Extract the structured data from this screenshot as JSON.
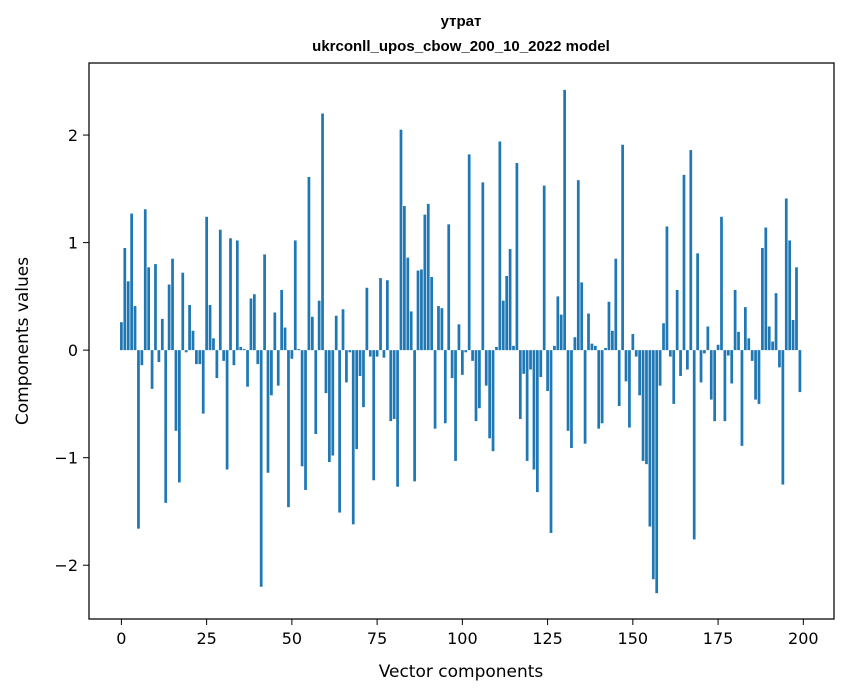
{
  "chart_data": {
    "type": "bar",
    "title": "утрат",
    "subtitle": "ukrconll_upos_cbow_200_10_2022 model",
    "xlabel": "Vector components",
    "ylabel": "Components values",
    "xlim": [
      -9.5,
      209
    ],
    "ylim": [
      -2.5,
      2.67
    ],
    "xticks": [
      0,
      25,
      50,
      75,
      100,
      125,
      150,
      175,
      200
    ],
    "yticks": [
      -2,
      -1,
      0,
      1,
      2
    ],
    "xtick_labels": [
      "0",
      "25",
      "50",
      "75",
      "100",
      "125",
      "150",
      "175",
      "200"
    ],
    "ytick_labels": [
      "−2",
      "−1",
      "0",
      "1",
      "2"
    ],
    "bar_color": "#1f77b4",
    "values": [
      0.26,
      0.95,
      0.64,
      1.27,
      0.41,
      -1.66,
      -0.14,
      1.31,
      0.77,
      -0.36,
      0.8,
      -0.11,
      0.29,
      -1.42,
      0.61,
      0.85,
      -0.75,
      -1.23,
      0.72,
      -0.02,
      0.42,
      0.18,
      -0.13,
      -0.13,
      -0.59,
      1.24,
      0.42,
      0.11,
      -0.26,
      1.12,
      -0.1,
      -1.11,
      1.04,
      -0.14,
      1.02,
      0.03,
      0.01,
      -0.34,
      0.48,
      0.52,
      -0.13,
      -2.2,
      0.89,
      -1.14,
      -0.42,
      0.35,
      -0.33,
      0.56,
      0.21,
      -1.46,
      -0.08,
      1.02,
      0.01,
      -1.08,
      -1.3,
      1.61,
      0.31,
      -0.78,
      0.46,
      2.2,
      -0.4,
      -1.04,
      -0.98,
      0.32,
      -1.51,
      0.38,
      -0.3,
      -0.02,
      -1.62,
      -0.92,
      -0.24,
      -0.53,
      0.58,
      -0.06,
      -1.21,
      -0.06,
      0.67,
      -0.07,
      0.65,
      -0.66,
      -0.64,
      -1.27,
      2.05,
      1.34,
      0.86,
      0.36,
      -1.22,
      0.74,
      0.75,
      1.26,
      1.36,
      0.68,
      -0.73,
      0.41,
      0.39,
      -0.68,
      1.17,
      -0.26,
      -1.03,
      0.24,
      -0.23,
      -0.02,
      1.82,
      -0.1,
      -0.66,
      -0.54,
      1.56,
      -0.33,
      -0.82,
      -0.94,
      0.03,
      1.94,
      0.46,
      0.69,
      0.94,
      0.04,
      1.74,
      -0.64,
      -0.22,
      -1.03,
      -0.18,
      -1.11,
      -1.32,
      -0.25,
      1.53,
      -0.38,
      -1.7,
      0.04,
      0.5,
      0.33,
      2.42,
      -0.75,
      -0.91,
      0.12,
      1.58,
      0.63,
      -0.87,
      0.34,
      0.06,
      0.04,
      -0.73,
      -0.68,
      0.02,
      0.45,
      0.18,
      0.85,
      -0.52,
      1.91,
      -0.29,
      -0.72,
      0.15,
      -0.06,
      -0.42,
      -1.03,
      -1.06,
      -1.64,
      -2.13,
      -2.26,
      -0.33,
      0.25,
      1.15,
      -0.06,
      -0.5,
      0.56,
      -0.24,
      1.63,
      -0.18,
      1.86,
      -1.76,
      0.9,
      -0.3,
      -0.03,
      0.22,
      -0.46,
      -0.66,
      0.05,
      1.24,
      -0.66,
      -0.05,
      -0.31,
      0.56,
      0.17,
      -0.89,
      0.4,
      0.11,
      -0.1,
      -0.46,
      -0.5,
      0.95,
      1.14,
      0.22,
      0.08,
      0.53,
      -0.16,
      -1.25,
      1.41,
      1.02,
      0.28,
      0.77,
      -0.39
    ]
  }
}
